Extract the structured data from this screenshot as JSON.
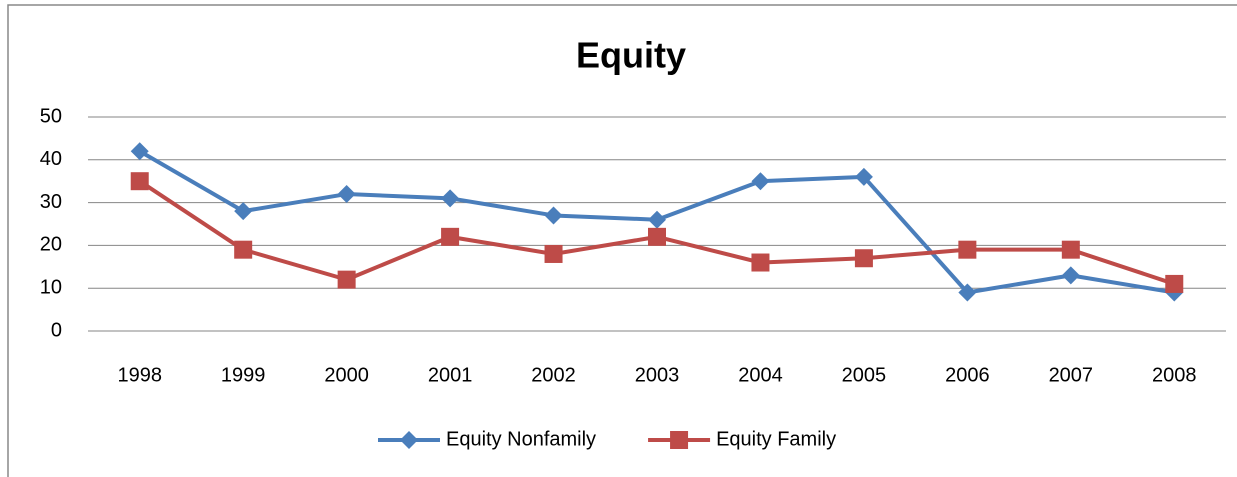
{
  "chart_data": {
    "type": "line",
    "title": "Equity",
    "categories": [
      "1998",
      "1999",
      "2000",
      "2001",
      "2002",
      "2003",
      "2004",
      "2005",
      "2006",
      "2007",
      "2008"
    ],
    "series": [
      {
        "name": "Equity Nonfamily",
        "color": "#4a7ebb",
        "marker": "diamond",
        "values": [
          42,
          28,
          32,
          31,
          27,
          26,
          35,
          36,
          9,
          13,
          9
        ]
      },
      {
        "name": "Equity Family",
        "color": "#be4b48",
        "marker": "square",
        "values": [
          35,
          19,
          12,
          22,
          18,
          22,
          16,
          17,
          19,
          19,
          11
        ]
      }
    ],
    "ylim": [
      0,
      50
    ],
    "yticks": [
      0,
      10,
      20,
      30,
      40,
      50
    ],
    "grid": true,
    "legend": "bottom"
  }
}
